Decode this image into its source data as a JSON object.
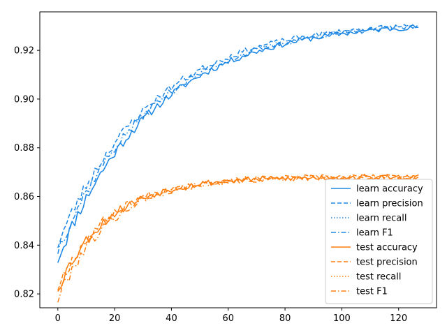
{
  "chart_data": {
    "type": "line",
    "title": "",
    "xlabel": "",
    "ylabel": "",
    "xlim": [
      -6.35,
      133.35
    ],
    "ylim": [
      0.8143,
      0.9358
    ],
    "xticks": [
      0,
      20,
      40,
      60,
      80,
      100,
      120
    ],
    "yticks": [
      0.82,
      0.84,
      0.86,
      0.88,
      0.9,
      0.92
    ],
    "grid": false,
    "legend": {
      "placement": "lower-right"
    },
    "colors": {
      "learn": "#1e88e5",
      "test": "#ff7f0e"
    },
    "x_range": [
      0,
      127
    ],
    "series": [
      {
        "name": "learn accuracy",
        "group": "learn",
        "style": "solid",
        "start": 0.8345,
        "end": 0.932,
        "tau": 34,
        "noise": 0.0032,
        "seed": 11
      },
      {
        "name": "learn precision",
        "group": "learn",
        "style": "dashed",
        "start": 0.8405,
        "end": 0.9322,
        "tau": 33,
        "noise": 0.003,
        "seed": 23
      },
      {
        "name": "learn recall",
        "group": "learn",
        "style": "dotted",
        "start": 0.8345,
        "end": 0.932,
        "tau": 34,
        "noise": 0.0032,
        "seed": 11
      },
      {
        "name": "learn F1",
        "group": "learn",
        "style": "dashdot",
        "start": 0.838,
        "end": 0.9321,
        "tau": 34,
        "noise": 0.0031,
        "seed": 37
      },
      {
        "name": "test accuracy",
        "group": "test",
        "style": "solid",
        "start": 0.8225,
        "end": 0.868,
        "tau": 18,
        "noise": 0.003,
        "seed": 53
      },
      {
        "name": "test precision",
        "group": "test",
        "style": "dashed",
        "start": 0.823,
        "end": 0.8682,
        "tau": 18,
        "noise": 0.003,
        "seed": 67
      },
      {
        "name": "test recall",
        "group": "test",
        "style": "dotted",
        "start": 0.8225,
        "end": 0.868,
        "tau": 18,
        "noise": 0.003,
        "seed": 53
      },
      {
        "name": "test F1",
        "group": "test",
        "style": "dashdot",
        "start": 0.818,
        "end": 0.8679,
        "tau": 18,
        "noise": 0.0031,
        "seed": 79
      }
    ]
  }
}
